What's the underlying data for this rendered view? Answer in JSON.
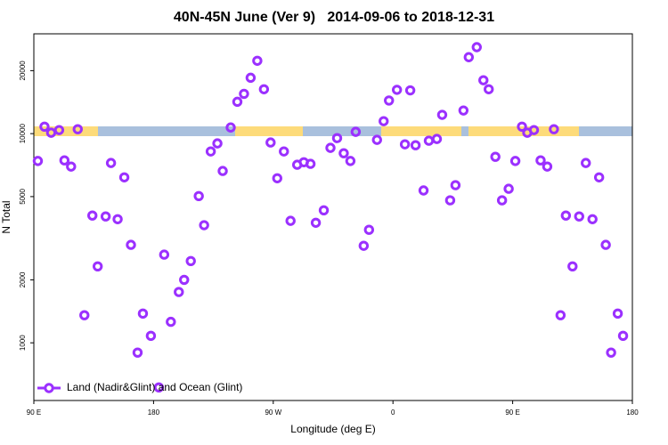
{
  "chart_data": {
    "type": "scatter",
    "title": "40N-45N June (Ver 9)   2014-09-06 to 2018-12-31",
    "x_label": "Longitude (deg E)",
    "y_label": "N Total",
    "log_y": true,
    "xlim": [
      -270,
      180
    ],
    "ylim": [
      530,
      30000
    ],
    "xticks": [
      {
        "value": -270,
        "label": "90 E"
      },
      {
        "value": -180,
        "label": "180"
      },
      {
        "value": -90,
        "label": "90 W"
      },
      0,
      {
        "value": 90,
        "label": "90 E"
      },
      {
        "value": 180,
        "label": "180"
      }
    ],
    "yticks": [
      1000,
      2000,
      5000,
      10000,
      20000
    ],
    "legend_position": "bottom-left",
    "series": [
      {
        "name": "Land (Nadir&Glint) and Ocean (Glint)",
        "color": "#9b30ff",
        "x": [
          -267,
          -262,
          -257,
          -251,
          -247,
          -242,
          -237,
          -232,
          -226,
          -222,
          -216,
          -212,
          -207,
          -202,
          -197,
          -192,
          -188,
          -182,
          -176,
          -172,
          -167,
          -161,
          -157,
          -152,
          -146,
          -142,
          -137,
          -132,
          -128,
          -122,
          -117,
          -112,
          -107,
          -102,
          -97,
          -92,
          -87,
          -82,
          -77,
          -72,
          -67,
          -62,
          -58,
          -52,
          -47,
          -42,
          -37,
          -32,
          -28,
          -22,
          -18,
          -12,
          -7,
          -3,
          3,
          9,
          13,
          17,
          23,
          27,
          33,
          37,
          43,
          47,
          53,
          57,
          63,
          68,
          72,
          77,
          82,
          87,
          92,
          97,
          101,
          106,
          111,
          116,
          121,
          126,
          130,
          135,
          140,
          145,
          150,
          155,
          160,
          164,
          169,
          173
        ],
        "values": [
          7400,
          10800,
          10100,
          10400,
          7450,
          6960,
          10500,
          1355,
          4060,
          2320,
          4020,
          7240,
          3900,
          6180,
          2940,
          898,
          1380,
          1080,
          612,
          2640,
          1260,
          1750,
          2000,
          2460,
          5030,
          3650,
          8220,
          8980,
          6630,
          10700,
          14200,
          15500,
          18500,
          22300,
          16300,
          9070,
          6120,
          8220,
          3830,
          7100,
          7300,
          7170,
          3750,
          4300,
          8550,
          9520,
          8060,
          7400,
          10200,
          2910,
          3470,
          9340,
          11470,
          14400,
          16200,
          8890,
          16100,
          8800,
          5350,
          9250,
          9430,
          12300,
          4800,
          5670,
          12900,
          23200,
          25900,
          18000,
          16300,
          7750,
          4800,
          5450,
          7400,
          10800,
          10100,
          10400,
          7450,
          6960,
          10500,
          1355,
          4060,
          2320,
          4020,
          7240,
          3900,
          6180,
          2940,
          898,
          1380,
          1080
        ]
      }
    ]
  }
}
